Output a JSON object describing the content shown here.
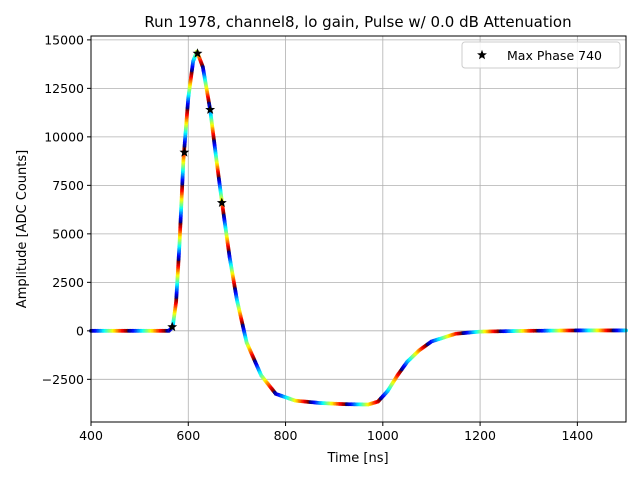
{
  "chart_data": {
    "type": "scatter",
    "title": "Run 1978, channel8, lo gain, Pulse w/ 0.0 dB Attenuation",
    "xlabel": "Time [ns]",
    "ylabel": "Amplitude [ADC Counts]",
    "xlim": [
      400,
      1500
    ],
    "ylim": [
      -4700,
      15200
    ],
    "xticks": [
      400,
      600,
      800,
      1000,
      1200,
      1400
    ],
    "yticks": [
      -2500,
      0,
      2500,
      5000,
      7500,
      10000,
      12500,
      15000
    ],
    "grid": true,
    "legend_position": "top-right",
    "colormap": "jet",
    "waveform": [
      {
        "x": 400,
        "y": 0
      },
      {
        "x": 560,
        "y": 0
      },
      {
        "x": 568,
        "y": 200
      },
      {
        "x": 575,
        "y": 1500
      },
      {
        "x": 582,
        "y": 4500
      },
      {
        "x": 590,
        "y": 8800
      },
      {
        "x": 600,
        "y": 12000
      },
      {
        "x": 610,
        "y": 13900
      },
      {
        "x": 618,
        "y": 14400
      },
      {
        "x": 630,
        "y": 13600
      },
      {
        "x": 645,
        "y": 11400
      },
      {
        "x": 658,
        "y": 8800
      },
      {
        "x": 670,
        "y": 6500
      },
      {
        "x": 685,
        "y": 3800
      },
      {
        "x": 700,
        "y": 1600
      },
      {
        "x": 720,
        "y": -600
      },
      {
        "x": 750,
        "y": -2300
      },
      {
        "x": 780,
        "y": -3250
      },
      {
        "x": 820,
        "y": -3600
      },
      {
        "x": 870,
        "y": -3720
      },
      {
        "x": 920,
        "y": -3780
      },
      {
        "x": 970,
        "y": -3800
      },
      {
        "x": 990,
        "y": -3650
      },
      {
        "x": 1010,
        "y": -3100
      },
      {
        "x": 1030,
        "y": -2300
      },
      {
        "x": 1050,
        "y": -1600
      },
      {
        "x": 1075,
        "y": -1000
      },
      {
        "x": 1100,
        "y": -550
      },
      {
        "x": 1150,
        "y": -150
      },
      {
        "x": 1200,
        "y": -40
      },
      {
        "x": 1300,
        "y": 0
      },
      {
        "x": 1400,
        "y": 20
      },
      {
        "x": 1500,
        "y": 20
      }
    ],
    "series": [
      {
        "name": "Max Phase 740",
        "marker": "star",
        "color": "#000000",
        "x": [
          567,
          592,
          619,
          645,
          669
        ],
        "y": [
          200,
          9200,
          14300,
          11400,
          6600
        ]
      }
    ]
  }
}
